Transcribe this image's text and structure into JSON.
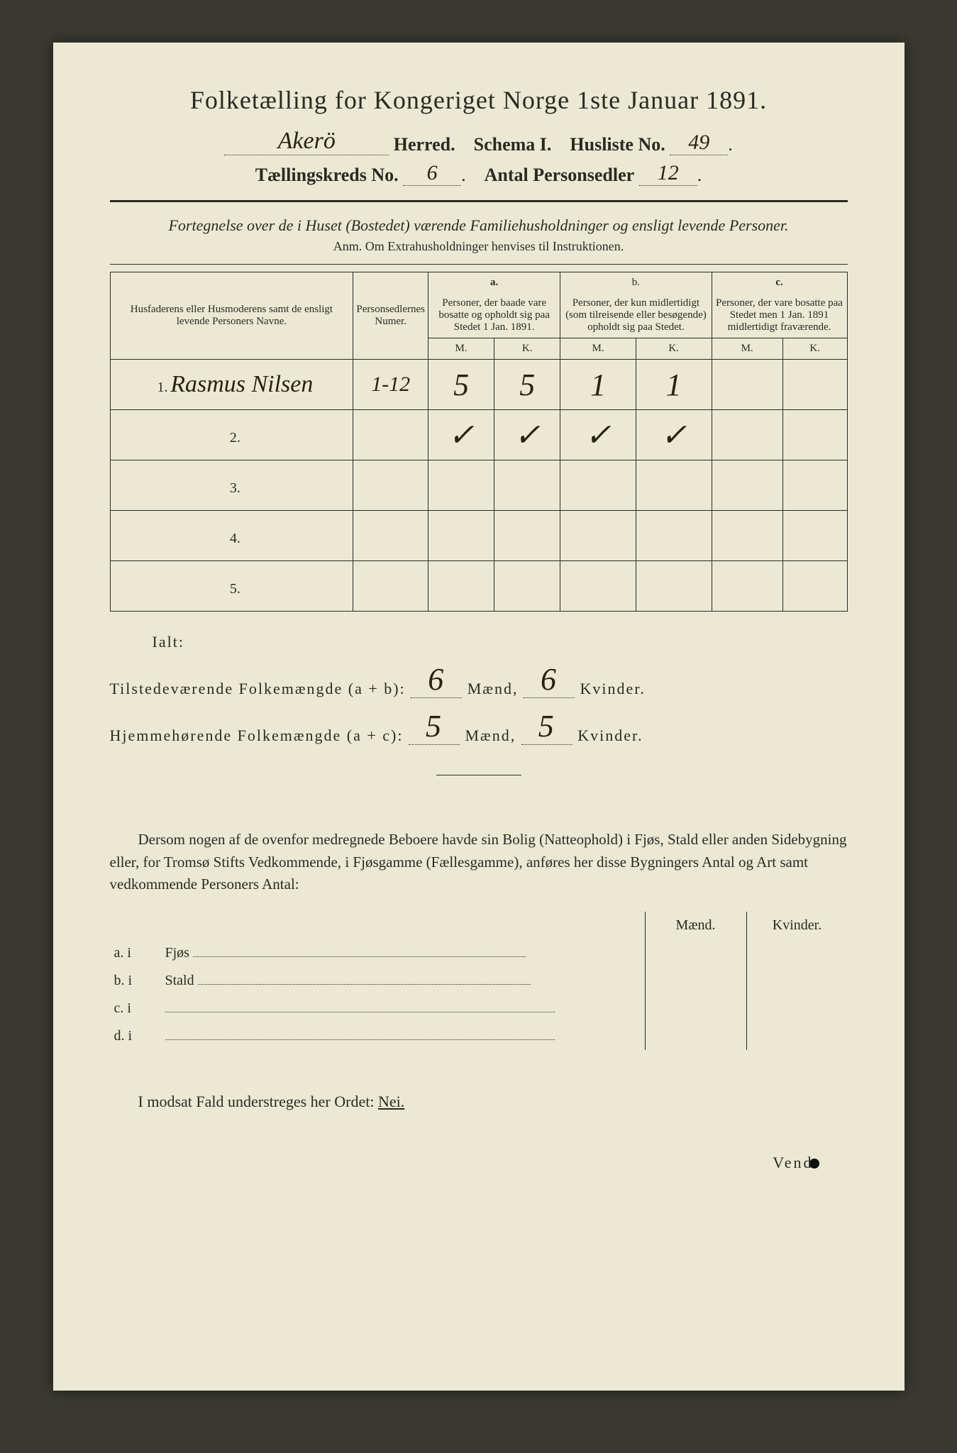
{
  "header": {
    "title": "Folketælling for Kongeriget Norge 1ste Januar 1891.",
    "herred_value": "Akerö",
    "herred_label": "Herred.",
    "schema_label": "Schema I.",
    "husliste_label": "Husliste No.",
    "husliste_value": "49",
    "kreds_label": "Tællingskreds No.",
    "kreds_value": "6",
    "personsedler_label": "Antal Personsedler",
    "personsedler_value": "12"
  },
  "subtitle": "Fortegnelse over de i Huset (Bostedet) værende Familiehusholdninger og ensligt levende Personer.",
  "anm": "Anm. Om Extrahusholdninger henvises til Instruktionen.",
  "columns": {
    "names_header": "Husfaderens eller Husmoderens samt de ensligt levende Personers Navne.",
    "numer_header": "Personsedlernes Numer.",
    "a_label": "a.",
    "a_header": "Personer, der baade vare bosatte og opholdt sig paa Stedet 1 Jan. 1891.",
    "b_label": "b.",
    "b_header": "Personer, der kun midlertidigt (som tilreisende eller besøgende) opholdt sig paa Stedet.",
    "c_label": "c.",
    "c_header": "Personer, der vare bosatte paa Stedet men 1 Jan. 1891 midlertidigt fraværende.",
    "m": "M.",
    "k": "K."
  },
  "rows": [
    {
      "n": "1.",
      "name": "Rasmus Nilsen",
      "numer": "1-12",
      "a_m": "5",
      "a_k": "5",
      "b_m": "1",
      "b_k": "1",
      "c_m": "",
      "c_k": ""
    },
    {
      "n": "2.",
      "name": "",
      "numer": "",
      "a_m": "✓",
      "a_k": "✓",
      "b_m": "✓",
      "b_k": "✓",
      "c_m": "",
      "c_k": ""
    },
    {
      "n": "3.",
      "name": "",
      "numer": "",
      "a_m": "",
      "a_k": "",
      "b_m": "",
      "b_k": "",
      "c_m": "",
      "c_k": ""
    },
    {
      "n": "4.",
      "name": "",
      "numer": "",
      "a_m": "",
      "a_k": "",
      "b_m": "",
      "b_k": "",
      "c_m": "",
      "c_k": ""
    },
    {
      "n": "5.",
      "name": "",
      "numer": "",
      "a_m": "",
      "a_k": "",
      "b_m": "",
      "b_k": "",
      "c_m": "",
      "c_k": ""
    }
  ],
  "totals": {
    "ialt_label": "Ialt:",
    "present_label": "Tilstedeværende Folkemængde (a + b):",
    "present_m": "6",
    "present_k": "6",
    "resident_label": "Hjemmehørende Folkemængde (a + c):",
    "resident_m": "5",
    "resident_k": "5",
    "maend": "Mænd,",
    "kvinder": "Kvinder."
  },
  "instruction": "Dersom nogen af de ovenfor medregnede Beboere havde sin Bolig (Natteophold) i Fjøs, Stald eller anden Sidebygning eller, for Tromsø Stifts Vedkommende, i Fjøsgamme (Fællesgamme), anføres her disse Bygningers Antal og Art samt vedkommende Personers Antal:",
  "side_labels": {
    "maend": "Mænd.",
    "kvinder": "Kvinder.",
    "a": "a. i",
    "a_type": "Fjøs",
    "b": "b. i",
    "b_type": "Stald",
    "c": "c. i",
    "d": "d. i"
  },
  "final_line_prefix": "I modsat Fald understreges her Ordet:",
  "final_line_word": "Nei.",
  "vend": "Vend"
}
